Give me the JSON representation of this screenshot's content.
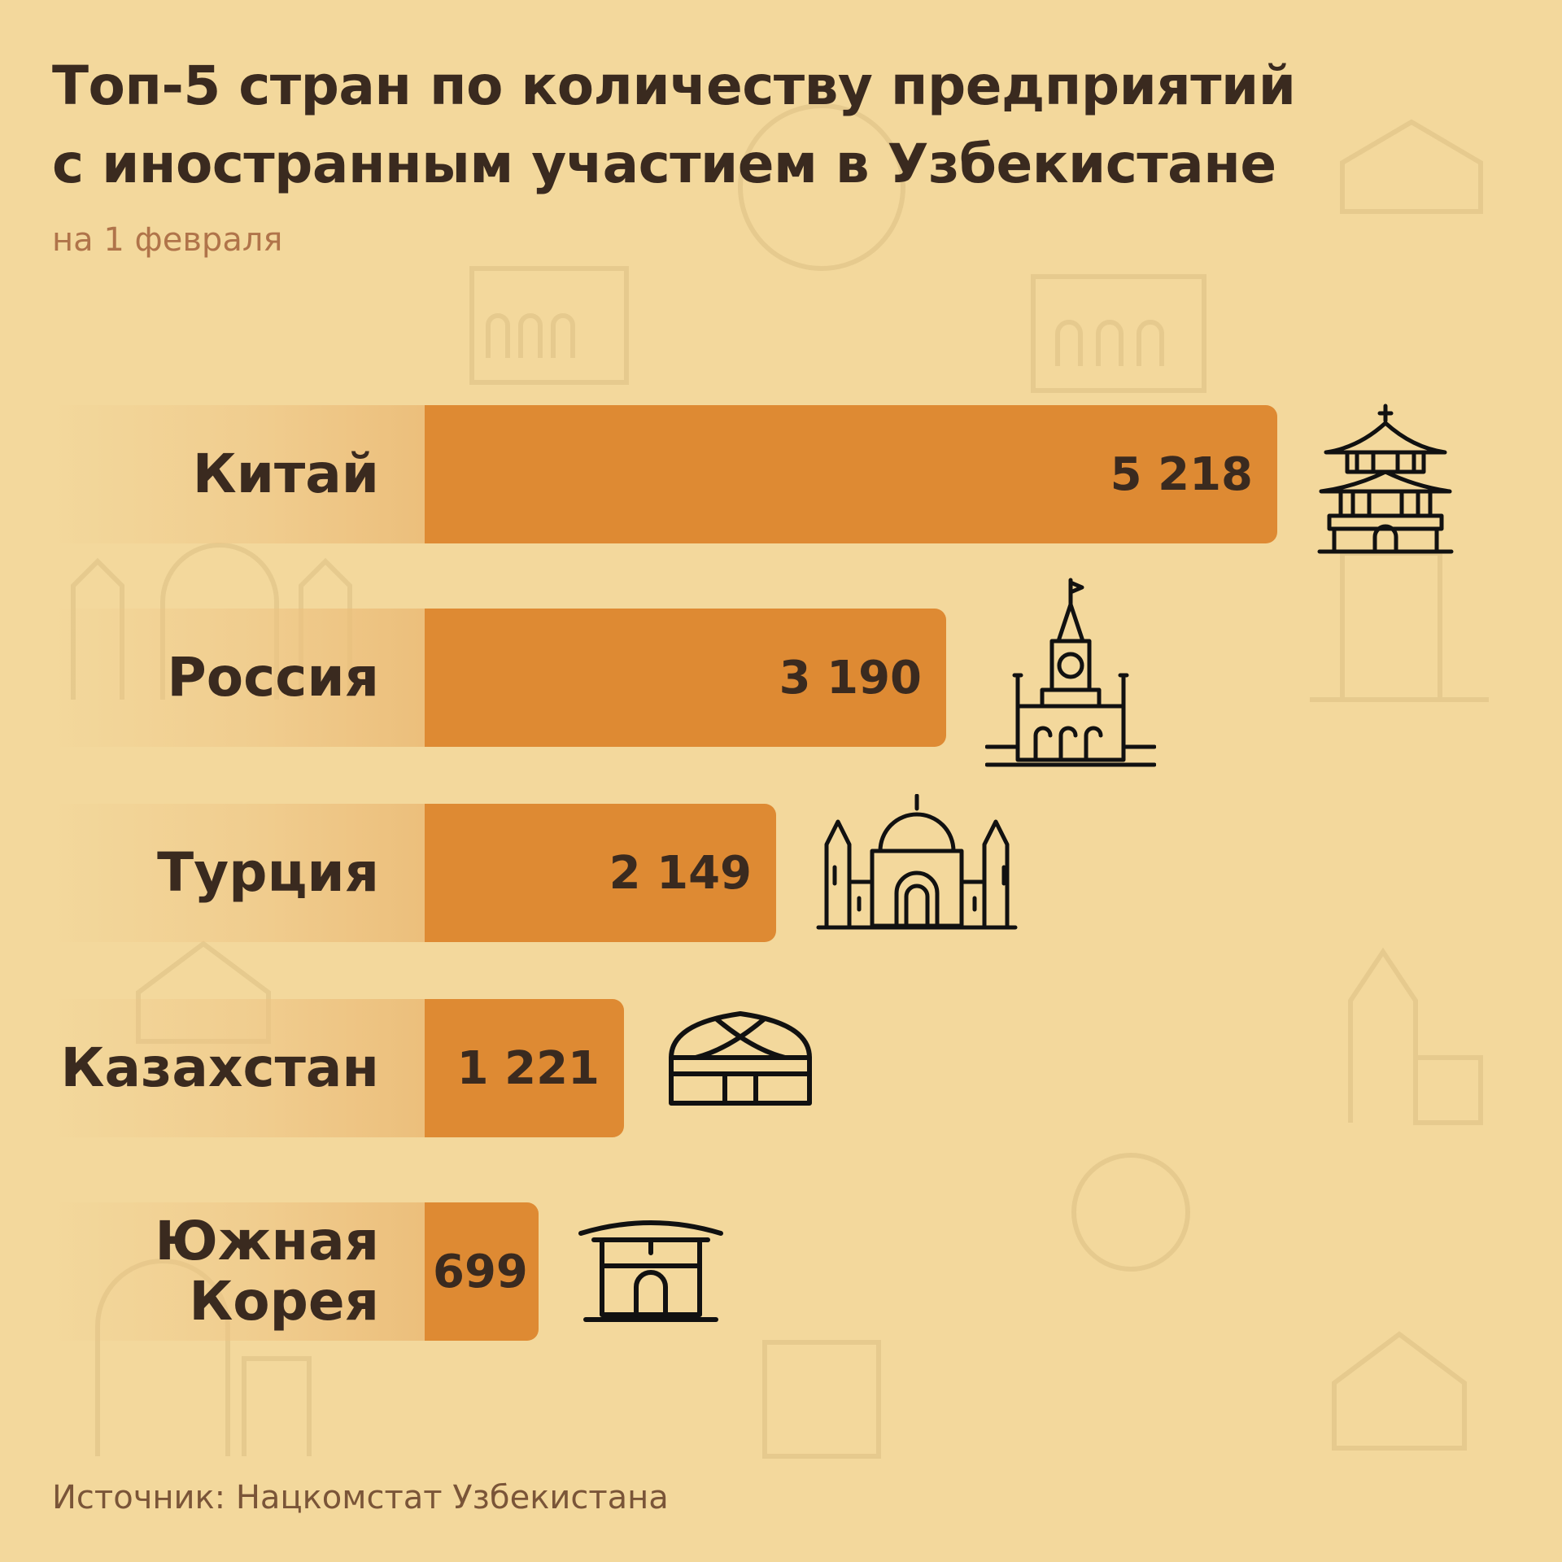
{
  "title_line1": "Топ-5 стран по количеству предприятий",
  "title_line2": "с иностранным участием в Узбекистане",
  "subtitle": "на 1 февраля",
  "source": "Источник: Нацкомстат Узбекистана",
  "colors": {
    "background": "#f3d89c",
    "bar": "#de8a33",
    "text": "#3a2a1f",
    "subtitle": "#b0744a"
  },
  "chart_data": {
    "type": "bar",
    "orientation": "horizontal",
    "categories": [
      "Китай",
      "Россия",
      "Турция",
      "Казахстан",
      "Южная Корея"
    ],
    "values": [
      5218,
      3190,
      2149,
      1221,
      699
    ],
    "value_labels": [
      "5 218",
      "3 190",
      "2 149",
      "1 221",
      "699"
    ],
    "icons": [
      "chinese-pagoda-icon",
      "kremlin-tower-icon",
      "mosque-icon",
      "yurt-icon",
      "korean-house-icon"
    ],
    "title": "Топ-5 стран по количеству предприятий с иностранным участием в Узбекистане",
    "subtitle": "на 1 февраля",
    "xlabel": "",
    "ylabel": "",
    "grid": false,
    "legend": "none"
  }
}
